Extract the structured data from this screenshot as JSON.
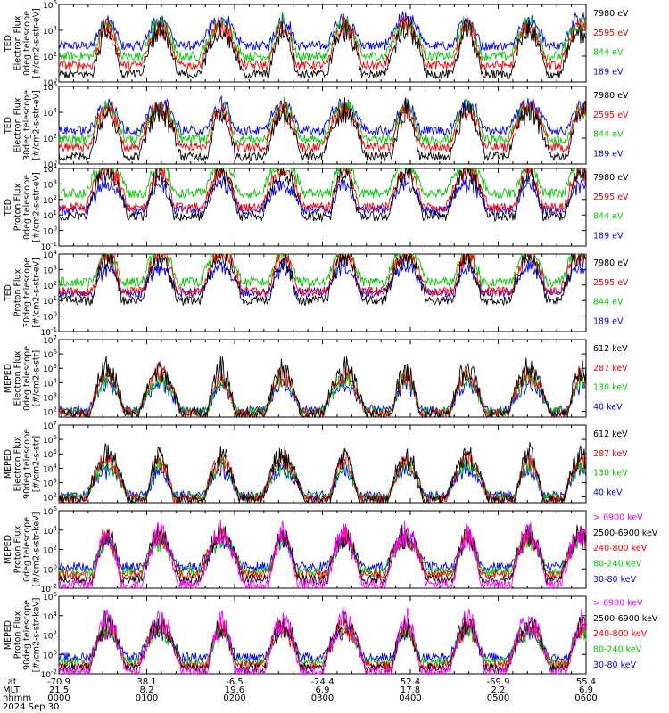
{
  "chart_data": {
    "type": "line",
    "x_axis": {
      "rows": [
        {
          "label": "Lat",
          "ticks": [
            "-70.9",
            "38.1",
            "-6.5",
            "-24.4",
            "52.4",
            "-69.9",
            "55.4"
          ]
        },
        {
          "label": "MLT",
          "ticks": [
            "21.5",
            "8.2",
            "19.6",
            "6.9",
            "17.8",
            "2.2",
            "6.9"
          ]
        },
        {
          "label": "hhmm",
          "ticks": [
            "0000",
            "0100",
            "0200",
            "0300",
            "0400",
            "0500",
            "0600"
          ]
        }
      ],
      "date": "2024 Sep 30",
      "range_hours": [
        0,
        6
      ]
    },
    "panels": [
      {
        "ylabel": [
          "TED",
          "Electron Flux",
          "0deg telescope",
          "[#/cm2-s-str-eV]"
        ],
        "y_log_range": [
          0,
          6
        ],
        "y_ticks": [
          0,
          2,
          4,
          6
        ],
        "baseline": {
          "189 eV": 2.8,
          "844 eV": 2.0,
          "2595 eV": 1.3,
          "7980 eV": 0.6
        },
        "series": [
          {
            "name": "7980 eV",
            "color": "#000000"
          },
          {
            "name": "2595 eV",
            "color": "#ff0000"
          },
          {
            "name": "844 eV",
            "color": "#00c800"
          },
          {
            "name": "189 eV",
            "color": "#0000ff"
          }
        ]
      },
      {
        "ylabel": [
          "TED",
          "Electron Flux",
          "30deg telescope",
          "[#/cm2-s-str-eV]"
        ],
        "y_log_range": [
          0,
          6
        ],
        "y_ticks": [
          0,
          2,
          4,
          6
        ],
        "baseline": {
          "189 eV": 2.6,
          "844 eV": 1.9,
          "2595 eV": 1.3,
          "7980 eV": 0.6
        },
        "series": [
          {
            "name": "7980 eV",
            "color": "#000000"
          },
          {
            "name": "2595 eV",
            "color": "#ff0000"
          },
          {
            "name": "844 eV",
            "color": "#00c800"
          },
          {
            "name": "189 eV",
            "color": "#0000ff"
          }
        ]
      },
      {
        "ylabel": [
          "TED",
          "Proton Flux",
          "0deg telescope",
          "[#/cm2-s-str-eV]"
        ],
        "y_log_range": [
          -1,
          4
        ],
        "y_ticks": [
          -1,
          0,
          1,
          2,
          3,
          4
        ],
        "baseline": {
          "189 eV": 1.3,
          "844 eV": 2.4,
          "2595 eV": 1.5,
          "7980 eV": 0.9
        },
        "series": [
          {
            "name": "7980 eV",
            "color": "#000000"
          },
          {
            "name": "2595 eV",
            "color": "#ff0000"
          },
          {
            "name": "844 eV",
            "color": "#00c800"
          },
          {
            "name": "189 eV",
            "color": "#0000ff"
          }
        ]
      },
      {
        "ylabel": [
          "TED",
          "Proton Flux",
          "30deg telescope",
          "[#/cm2-s-str-eV]"
        ],
        "y_log_range": [
          -1,
          4
        ],
        "y_ticks": [
          -1,
          0,
          1,
          2,
          3,
          4
        ],
        "baseline": {
          "189 eV": 1.5,
          "844 eV": 2.2,
          "2595 eV": 1.6,
          "7980 eV": 1.0
        },
        "series": [
          {
            "name": "7980 eV",
            "color": "#000000"
          },
          {
            "name": "2595 eV",
            "color": "#ff0000"
          },
          {
            "name": "844 eV",
            "color": "#00c800"
          },
          {
            "name": "189 eV",
            "color": "#0000ff"
          }
        ]
      },
      {
        "ylabel": [
          "MEPED",
          "Electron Flux",
          "0deg telescope",
          "[#/cm2-s-str]"
        ],
        "y_log_range": [
          1.6,
          7
        ],
        "y_ticks": [
          2,
          3,
          4,
          5,
          6,
          7
        ],
        "baseline": {
          "40 keV": 2.1,
          "130 keV": 2.0,
          "287 keV": 1.9,
          "612 keV": 1.8
        },
        "series": [
          {
            "name": "612 keV",
            "color": "#000000"
          },
          {
            "name": "287 keV",
            "color": "#ff0000"
          },
          {
            "name": "130 keV",
            "color": "#00c800"
          },
          {
            "name": "40 keV",
            "color": "#0000ff"
          }
        ]
      },
      {
        "ylabel": [
          "MEPED",
          "Electron Flux",
          "90deg telescope",
          "[#/cm2-s-str]"
        ],
        "y_log_range": [
          1.6,
          7
        ],
        "y_ticks": [
          2,
          3,
          4,
          5,
          6,
          7
        ],
        "baseline": {
          "40 keV": 2.1,
          "130 keV": 2.0,
          "287 keV": 1.9,
          "612 keV": 1.8
        },
        "series": [
          {
            "name": "612 keV",
            "color": "#000000"
          },
          {
            "name": "287 keV",
            "color": "#ff0000"
          },
          {
            "name": "130 keV",
            "color": "#00c800"
          },
          {
            "name": "40 keV",
            "color": "#0000ff"
          }
        ]
      },
      {
        "ylabel": [
          "MEPED",
          "Proton Flux",
          "0deg telescope",
          "[#/cm2-s-str-keV]"
        ],
        "y_log_range": [
          -2,
          6
        ],
        "y_ticks": [
          -2,
          0,
          2,
          4,
          6
        ],
        "baseline": {
          "30-80 keV": 0.2,
          "80-240 keV": -0.3,
          "240-800 keV": -0.6,
          "2500-6900 keV": -1.1,
          "> 6900 keV": -1.6
        },
        "series": [
          {
            "name": "> 6900 keV",
            "color": "#ff00ff"
          },
          {
            "name": "2500-6900 keV",
            "color": "#000000"
          },
          {
            "name": "240-800 keV",
            "color": "#ff0000"
          },
          {
            "name": "80-240 keV",
            "color": "#00c800"
          },
          {
            "name": "30-80 keV",
            "color": "#0000ff"
          }
        ]
      },
      {
        "ylabel": [
          "MEPED",
          "Proton Flux",
          "90deg telescope",
          "[#/cm2-s-str-keV]"
        ],
        "y_log_range": [
          -2,
          6
        ],
        "y_ticks": [
          -2,
          0,
          2,
          4,
          6
        ],
        "baseline": {
          "30-80 keV": -0.3,
          "80-240 keV": -0.8,
          "240-800 keV": -1.1,
          "2500-6900 keV": -1.4,
          "> 6900 keV": -1.7
        },
        "series": [
          {
            "name": "> 6900 keV",
            "color": "#ff00ff"
          },
          {
            "name": "2500-6900 keV",
            "color": "#000000"
          },
          {
            "name": "240-800 keV",
            "color": "#ff0000"
          },
          {
            "name": "80-240 keV",
            "color": "#00c800"
          },
          {
            "name": "30-80 keV",
            "color": "#0000ff"
          }
        ]
      }
    ],
    "enhancement_times_hours": [
      0.55,
      1.15,
      1.85,
      2.55,
      3.25,
      3.95,
      4.65,
      5.35,
      5.95
    ]
  }
}
